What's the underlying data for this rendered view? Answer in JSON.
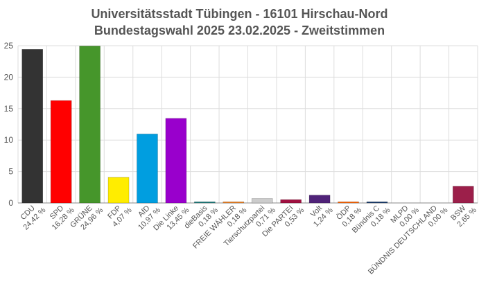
{
  "chart_data": {
    "type": "bar",
    "title_line1": "Universitätsstadt Tübingen - 16101 Hirschau-Nord",
    "title_line2": "Bundestagswahl 2025 23.02.2025  - Zweitstimmen",
    "xlabel": "",
    "ylabel": "",
    "ylim": [
      0,
      25
    ],
    "yticks": [
      "0",
      "5",
      "10",
      "15",
      "20",
      "25"
    ],
    "grid": true,
    "legend": "none",
    "categories": [
      "CDU",
      "SPD",
      "GRÜNE",
      "FDP",
      "AfD",
      "Die Linke",
      "dieBasis",
      "FREIE WÄHLER",
      "Tierschutzpartei",
      "Die PARTEI",
      "Volt",
      "ÖDP",
      "Bündnis C",
      "MLPD",
      "BÜNDNIS DEUTSCHLAND",
      "BSW"
    ],
    "values": [
      24.42,
      16.28,
      24.96,
      4.07,
      10.97,
      13.45,
      0.18,
      0.18,
      0.71,
      0.53,
      1.24,
      0.18,
      0.18,
      0.0,
      0.0,
      2.65
    ],
    "value_labels": [
      "24,42 %",
      "16,28 %",
      "24,96 %",
      "4,07 %",
      "10,97 %",
      "13,45 %",
      "0,18 %",
      "0,18 %",
      "0,71 %",
      "0,53 %",
      "1,24 %",
      "0,18 %",
      "0,18 %",
      "0,00 %",
      "0,00 %",
      "2,65 %"
    ],
    "colors": [
      "#333333",
      "#ff0000",
      "#46962b",
      "#ffed00",
      "#009ee0",
      "#9900cc",
      "#1a7a7a",
      "#f08020",
      "#cccccc",
      "#a01040",
      "#502379",
      "#ff6400",
      "#163a6c",
      "#cc0000",
      "#1a4488",
      "#9c1f4a"
    ]
  }
}
